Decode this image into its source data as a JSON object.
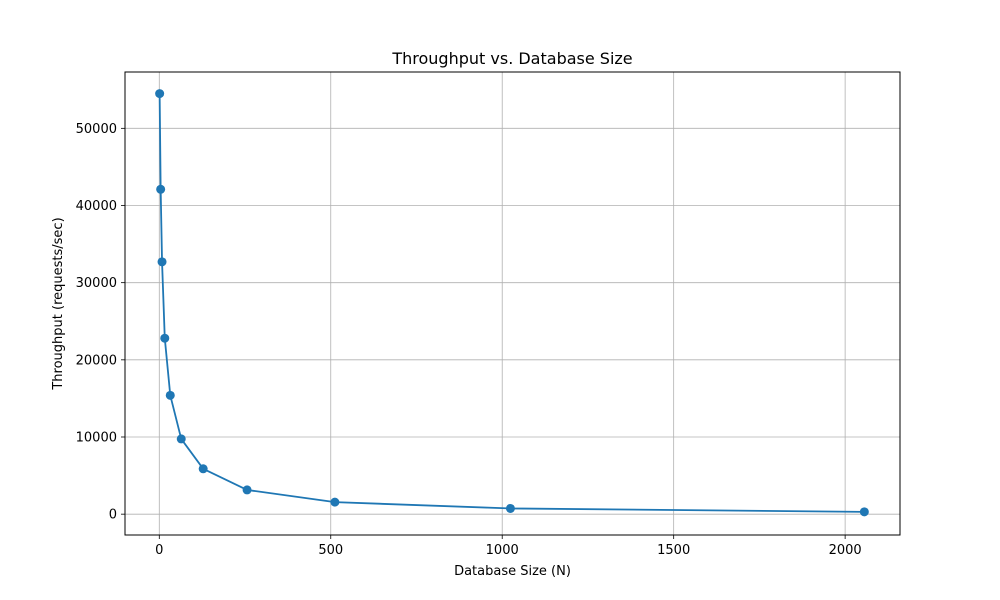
{
  "chart_data": {
    "type": "line",
    "title": "Throughput vs. Database Size",
    "xlabel": "Database Size (N)",
    "ylabel": "Throughput (requests/sec)",
    "xlim": [
      -100,
      2160
    ],
    "ylim": [
      -2700,
      57300
    ],
    "xticks": [
      0,
      500,
      1000,
      1500,
      2000
    ],
    "yticks": [
      0,
      10000,
      20000,
      30000,
      40000,
      50000
    ],
    "grid": true,
    "series": [
      {
        "color": "#1f77b4",
        "marker": "circle",
        "x": [
          1,
          4,
          8,
          16,
          32,
          64,
          128,
          256,
          512,
          1024,
          2056
        ],
        "y": [
          54500,
          42100,
          32700,
          22800,
          15400,
          9750,
          5880,
          3140,
          1560,
          740,
          300
        ]
      }
    ]
  }
}
